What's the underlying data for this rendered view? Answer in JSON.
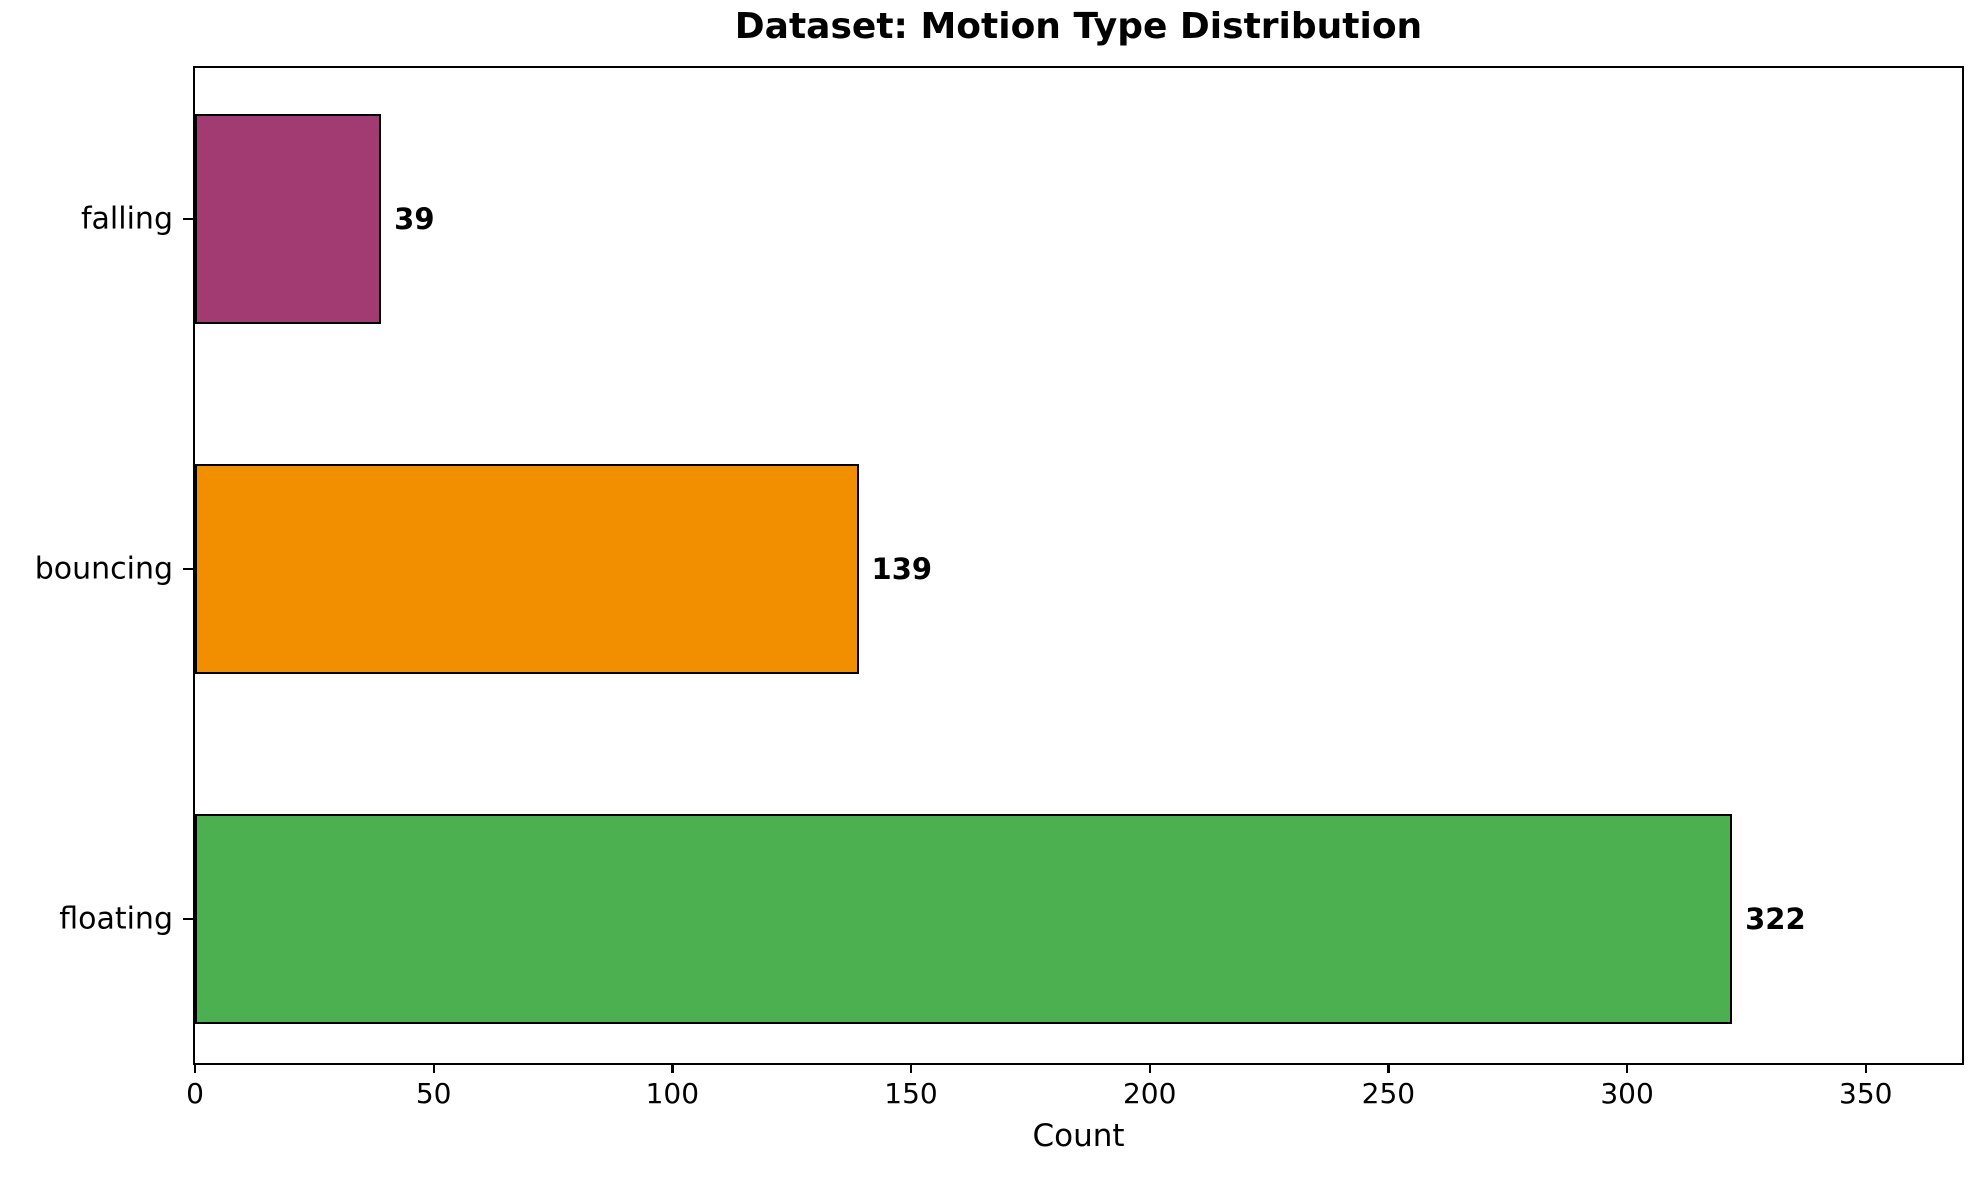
{
  "figure": {
    "background_color": "#FFFFFF",
    "text_color": "#000000"
  },
  "chart_data": {
    "type": "bar",
    "orientation": "horizontal",
    "title": "Dataset: Motion Type Distribution",
    "xlabel": "Count",
    "ylabel": "",
    "categories": [
      "falling",
      "bouncing",
      "floating"
    ],
    "category_order": "top-to-bottom",
    "values": [
      39,
      139,
      322
    ],
    "bar_value_labels": [
      "39",
      "139",
      "322"
    ],
    "bar_colors": [
      "#A23B72",
      "#F18F01",
      "#4CAF50"
    ],
    "bar_edge_color": "#000000",
    "xlim": [
      0,
      371
    ],
    "x_ticks": [
      0,
      50,
      100,
      150,
      200,
      250,
      300,
      350
    ],
    "grid": false,
    "legend": false
  }
}
